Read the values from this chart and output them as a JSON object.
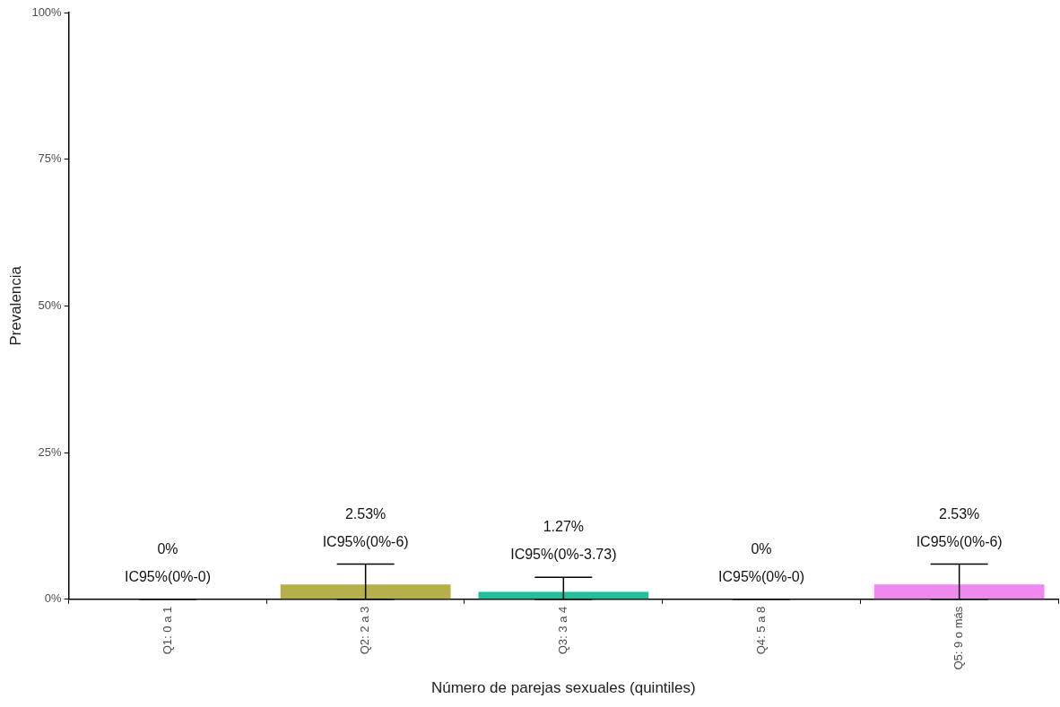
{
  "chart_data": {
    "type": "bar",
    "xlabel": "Número de parejas sexuales (quintiles)",
    "ylabel": "Prevalencia",
    "categories": [
      "Q1: 0 a 1",
      "Q2: 2 a 3",
      "Q3: 3 a 4",
      "Q4: 5 a 8",
      "Q5: 9 o más"
    ],
    "values": [
      0,
      2.53,
      1.27,
      0,
      2.53
    ],
    "colors": [
      "#f8766d",
      "#b5b04a",
      "#1fc19a",
      "#00b0f6",
      "#ef88ef"
    ],
    "errors": [
      [
        0,
        0
      ],
      [
        0,
        6
      ],
      [
        0,
        3.73
      ],
      [
        0,
        0
      ],
      [
        0,
        6
      ]
    ],
    "value_labels": [
      "0%\nIC95%(0%-0)",
      "2.53%\nIC95%(0%-6)",
      "1.27%\nIC95%(0%-3.73)",
      "0%\nIC95%(0%-0)",
      "2.53%\nIC95%(0%-6)"
    ],
    "ylim": [
      0,
      100
    ],
    "yticks": [
      {
        "value": 0,
        "label": "0%"
      },
      {
        "value": 25,
        "label": "25%"
      },
      {
        "value": 50,
        "label": "50%"
      },
      {
        "value": 75,
        "label": "75%"
      },
      {
        "value": 100,
        "label": "100%"
      }
    ]
  }
}
